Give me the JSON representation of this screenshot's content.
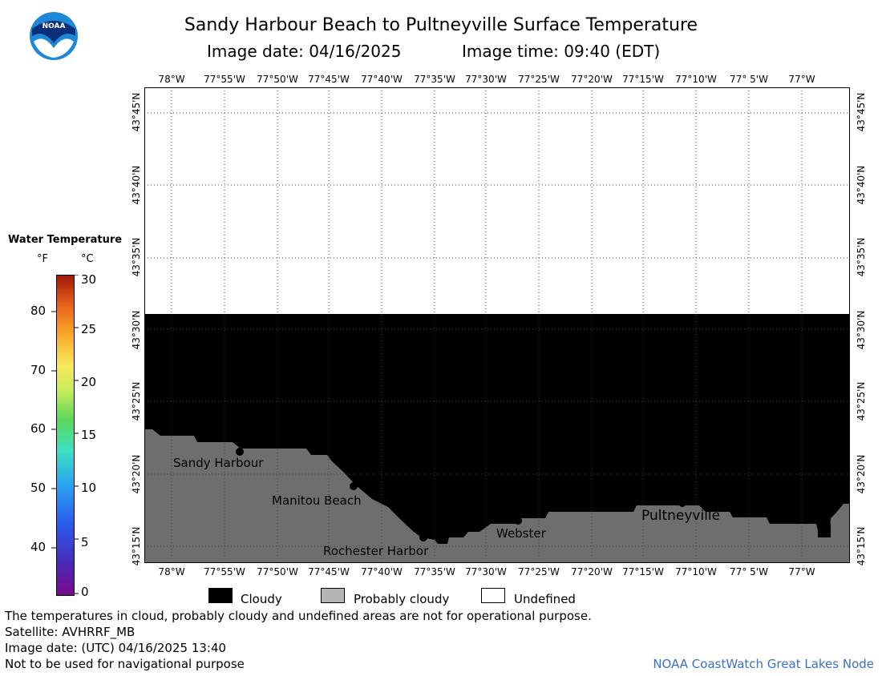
{
  "header": {
    "title": "Sandy Harbour Beach to Pultneyville Surface Temperature",
    "image_date": "Image date: 04/16/2025",
    "image_time": "Image time: 09:40 (EDT)",
    "logo_text": "NOAA"
  },
  "map": {
    "lon_labels": [
      "78°W",
      "77°55'W",
      "77°50'W",
      "77°45'W",
      "77°40'W",
      "77°35'W",
      "77°30'W",
      "77°25'W",
      "77°20'W",
      "77°15'W",
      "77°10'W",
      "77° 5'W",
      "77°W"
    ],
    "lat_labels": [
      "43°45'N",
      "43°40'N",
      "43°35'N",
      "43°30'N",
      "43°25'N",
      "43°20'N",
      "43°15'N"
    ],
    "places": [
      "Sandy Harbour",
      "Manitou Beach",
      "Rochester Harbor",
      "Webster",
      "Pultneyville"
    ],
    "colors": {
      "cloudy": "#000000",
      "probably_cloudy": "#808080",
      "undefined": "#ffffff"
    }
  },
  "scale": {
    "title": "Water Temperature",
    "unit_f": "°F",
    "unit_c": "°C",
    "f_ticks": [
      "80",
      "70",
      "60",
      "50",
      "40"
    ],
    "c_ticks": [
      "30",
      "25",
      "20",
      "15",
      "10",
      "5",
      "0"
    ]
  },
  "legend": {
    "cloudy": "Cloudy",
    "probably_cloudy": "Probably cloudy",
    "undefined": "Undefined"
  },
  "footer": {
    "note": "The temperatures in cloud, probably cloudy and undefined areas are not for operational purpose.",
    "satellite": "Satellite: AVHRRF_MB",
    "utc_date": "Image date: (UTC) 04/16/2025  13:40",
    "nav_warning": "Not to be used for navigational purpose",
    "credit": "NOAA CoastWatch Great Lakes Node"
  }
}
